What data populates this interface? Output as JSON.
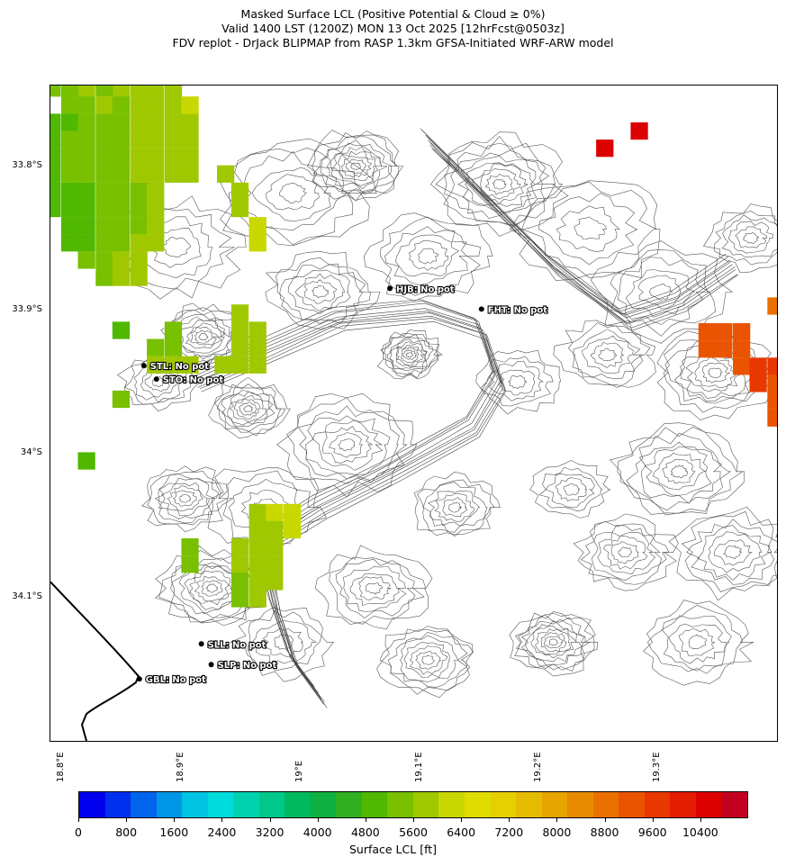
{
  "title": {
    "line1": "Masked Surface LCL (Positive Potential & Cloud ≥ 0%)",
    "line2": "Valid 1400 LST (1200Z) MON 13 Oct 2025 [12hrFcst@0503z]",
    "line3": "FDV replot - DrJack BLIPMAP from RASP 1.3km GFSA-Initiated WRF-ARW model"
  },
  "axes": {
    "lat_labels": [
      "33.8°S",
      "33.9°S",
      "34°S",
      "34.1°S"
    ],
    "lon_labels": [
      "18.8°E",
      "18.9°E",
      "19°E",
      "19.1°E",
      "19.2°E",
      "19.3°E"
    ]
  },
  "sites": [
    {
      "code": "HJB",
      "label": "HJB: No pot"
    },
    {
      "code": "FHT",
      "label": "FHT: No pot"
    },
    {
      "code": "STL",
      "label": "STL: No pot"
    },
    {
      "code": "STO",
      "label": "STO: No pot"
    },
    {
      "code": "SLL",
      "label": "SLL: No pot"
    },
    {
      "code": "SLP",
      "label": "SLP: No pot"
    },
    {
      "code": "GBL",
      "label": "GBL: No pot"
    }
  ],
  "colorbar": {
    "label": "Surface LCL [ft]",
    "tick_labels": [
      "0",
      "800",
      "1600",
      "2400",
      "3200",
      "4000",
      "4800",
      "5600",
      "6400",
      "7200",
      "8000",
      "8800",
      "9600",
      "10400"
    ],
    "min": 0,
    "max": 11200,
    "colors": [
      "#0000ee",
      "#0030ee",
      "#0064ec",
      "#0096e6",
      "#00c4e2",
      "#00dcdc",
      "#00d2b0",
      "#00c88a",
      "#00b860",
      "#10b040",
      "#30b020",
      "#50b800",
      "#78c000",
      "#a0c800",
      "#c8d800",
      "#e0dc00",
      "#e6d000",
      "#e6bc00",
      "#e6a400",
      "#e88a00",
      "#ea7000",
      "#ea5400",
      "#e83800",
      "#e41c00",
      "#dc0000",
      "#c40020"
    ]
  },
  "lcl_cells": [
    {
      "lon": 18.793,
      "lat": 33.735,
      "ft": 5000
    },
    {
      "lon": 18.808,
      "lat": 33.735,
      "ft": 5200
    },
    {
      "lon": 18.822,
      "lat": 33.735,
      "ft": 5400
    },
    {
      "lon": 18.837,
      "lat": 33.735,
      "ft": 5500
    },
    {
      "lon": 18.851,
      "lat": 33.735,
      "ft": 5600
    },
    {
      "lon": 18.866,
      "lat": 33.735,
      "ft": 5800
    },
    {
      "lon": 18.88,
      "lat": 33.735,
      "ft": 6000
    },
    {
      "lon": 18.866,
      "lat": 33.746,
      "ft": 5800
    },
    {
      "lon": 18.88,
      "lat": 33.746,
      "ft": 5800
    },
    {
      "lon": 18.895,
      "lat": 33.746,
      "ft": 6000
    },
    {
      "lon": 18.822,
      "lat": 33.746,
      "ft": 5600
    },
    {
      "lon": 18.808,
      "lat": 33.746,
      "ft": 5400
    },
    {
      "lon": 18.851,
      "lat": 33.746,
      "ft": 5600
    },
    {
      "lon": 18.837,
      "lat": 33.746,
      "ft": 5500
    },
    {
      "lon": 18.793,
      "lat": 33.746,
      "ft": 5400
    },
    {
      "lon": 18.808,
      "lat": 33.758,
      "ft": 5200
    },
    {
      "lon": 18.822,
      "lat": 33.758,
      "ft": 5400
    },
    {
      "lon": 18.837,
      "lat": 33.758,
      "ft": 5600
    },
    {
      "lon": 18.851,
      "lat": 33.758,
      "ft": 5400
    },
    {
      "lon": 18.866,
      "lat": 33.758,
      "ft": 5600
    },
    {
      "lon": 18.88,
      "lat": 33.758,
      "ft": 5800
    },
    {
      "lon": 18.895,
      "lat": 33.758,
      "ft": 6000
    },
    {
      "lon": 18.909,
      "lat": 33.758,
      "ft": 6200
    },
    {
      "lon": 18.793,
      "lat": 33.77,
      "ft": 4800
    },
    {
      "lon": 18.808,
      "lat": 33.77,
      "ft": 5000
    },
    {
      "lon": 18.822,
      "lat": 33.77,
      "ft": 5200
    },
    {
      "lon": 18.837,
      "lat": 33.77,
      "ft": 5400
    },
    {
      "lon": 18.851,
      "lat": 33.77,
      "ft": 5400
    },
    {
      "lon": 18.866,
      "lat": 33.77,
      "ft": 5600
    },
    {
      "lon": 18.88,
      "lat": 33.77,
      "ft": 5800
    },
    {
      "lon": 18.895,
      "lat": 33.77,
      "ft": 5800
    },
    {
      "lon": 18.909,
      "lat": 33.77,
      "ft": 6000
    },
    {
      "lon": 18.779,
      "lat": 33.782,
      "ft": 4800
    },
    {
      "lon": 18.793,
      "lat": 33.782,
      "ft": 5000
    },
    {
      "lon": 18.808,
      "lat": 33.782,
      "ft": 5200
    },
    {
      "lon": 18.822,
      "lat": 33.782,
      "ft": 5200
    },
    {
      "lon": 18.837,
      "lat": 33.782,
      "ft": 5400
    },
    {
      "lon": 18.851,
      "lat": 33.782,
      "ft": 5400
    },
    {
      "lon": 18.866,
      "lat": 33.782,
      "ft": 5600
    },
    {
      "lon": 18.88,
      "lat": 33.782,
      "ft": 5800
    },
    {
      "lon": 18.895,
      "lat": 33.782,
      "ft": 5800
    },
    {
      "lon": 18.909,
      "lat": 33.782,
      "ft": 6000
    },
    {
      "lon": 18.764,
      "lat": 33.794,
      "ft": 4600
    },
    {
      "lon": 18.779,
      "lat": 33.794,
      "ft": 4800
    },
    {
      "lon": 18.793,
      "lat": 33.794,
      "ft": 5000
    },
    {
      "lon": 18.808,
      "lat": 33.794,
      "ft": 5200
    },
    {
      "lon": 18.822,
      "lat": 33.794,
      "ft": 5200
    },
    {
      "lon": 18.837,
      "lat": 33.794,
      "ft": 5400
    },
    {
      "lon": 18.851,
      "lat": 33.794,
      "ft": 5400
    },
    {
      "lon": 18.866,
      "lat": 33.794,
      "ft": 5600
    },
    {
      "lon": 18.88,
      "lat": 33.794,
      "ft": 5800
    },
    {
      "lon": 18.895,
      "lat": 33.794,
      "ft": 6000
    },
    {
      "lon": 18.909,
      "lat": 33.794,
      "ft": 6000
    },
    {
      "lon": 18.764,
      "lat": 33.806,
      "ft": 4400
    },
    {
      "lon": 18.779,
      "lat": 33.806,
      "ft": 4600
    },
    {
      "lon": 18.793,
      "lat": 33.806,
      "ft": 5000
    },
    {
      "lon": 18.808,
      "lat": 33.806,
      "ft": 5200
    },
    {
      "lon": 18.822,
      "lat": 33.806,
      "ft": 5200
    },
    {
      "lon": 18.837,
      "lat": 33.806,
      "ft": 5400
    },
    {
      "lon": 18.851,
      "lat": 33.806,
      "ft": 5400
    },
    {
      "lon": 18.866,
      "lat": 33.806,
      "ft": 5600
    },
    {
      "lon": 18.88,
      "lat": 33.806,
      "ft": 5800
    },
    {
      "lon": 18.895,
      "lat": 33.806,
      "ft": 5800
    },
    {
      "lon": 18.909,
      "lat": 33.806,
      "ft": 5800
    },
    {
      "lon": 18.939,
      "lat": 33.806,
      "ft": 6000
    },
    {
      "lon": 18.764,
      "lat": 33.818,
      "ft": 4400
    },
    {
      "lon": 18.779,
      "lat": 33.818,
      "ft": 4600
    },
    {
      "lon": 18.793,
      "lat": 33.818,
      "ft": 4800
    },
    {
      "lon": 18.808,
      "lat": 33.818,
      "ft": 5000
    },
    {
      "lon": 18.822,
      "lat": 33.818,
      "ft": 5000
    },
    {
      "lon": 18.837,
      "lat": 33.818,
      "ft": 5200
    },
    {
      "lon": 18.851,
      "lat": 33.818,
      "ft": 5400
    },
    {
      "lon": 18.866,
      "lat": 33.818,
      "ft": 5400
    },
    {
      "lon": 18.88,
      "lat": 33.818,
      "ft": 5600
    },
    {
      "lon": 18.951,
      "lat": 33.818,
      "ft": 6000
    },
    {
      "lon": 18.793,
      "lat": 33.83,
      "ft": 4800
    },
    {
      "lon": 18.808,
      "lat": 33.83,
      "ft": 5000
    },
    {
      "lon": 18.822,
      "lat": 33.83,
      "ft": 5000
    },
    {
      "lon": 18.837,
      "lat": 33.83,
      "ft": 5200
    },
    {
      "lon": 18.851,
      "lat": 33.83,
      "ft": 5400
    },
    {
      "lon": 18.866,
      "lat": 33.83,
      "ft": 5400
    },
    {
      "lon": 18.88,
      "lat": 33.83,
      "ft": 5600
    },
    {
      "lon": 18.951,
      "lat": 33.83,
      "ft": 6000
    },
    {
      "lon": 18.808,
      "lat": 33.842,
      "ft": 5000
    },
    {
      "lon": 18.822,
      "lat": 33.842,
      "ft": 5000
    },
    {
      "lon": 18.837,
      "lat": 33.842,
      "ft": 5200
    },
    {
      "lon": 18.851,
      "lat": 33.842,
      "ft": 5200
    },
    {
      "lon": 18.866,
      "lat": 33.842,
      "ft": 5400
    },
    {
      "lon": 18.88,
      "lat": 33.842,
      "ft": 5600
    },
    {
      "lon": 18.966,
      "lat": 33.842,
      "ft": 6400
    },
    {
      "lon": 18.808,
      "lat": 33.854,
      "ft": 5000
    },
    {
      "lon": 18.822,
      "lat": 33.854,
      "ft": 5000
    },
    {
      "lon": 18.837,
      "lat": 33.854,
      "ft": 5200
    },
    {
      "lon": 18.851,
      "lat": 33.854,
      "ft": 5400
    },
    {
      "lon": 18.866,
      "lat": 33.854,
      "ft": 5600
    },
    {
      "lon": 18.88,
      "lat": 33.854,
      "ft": 5800
    },
    {
      "lon": 18.966,
      "lat": 33.854,
      "ft": 6200
    },
    {
      "lon": 18.822,
      "lat": 33.866,
      "ft": 5200
    },
    {
      "lon": 18.837,
      "lat": 33.866,
      "ft": 5400
    },
    {
      "lon": 18.851,
      "lat": 33.866,
      "ft": 5600
    },
    {
      "lon": 18.866,
      "lat": 33.866,
      "ft": 5800
    },
    {
      "lon": 18.837,
      "lat": 33.878,
      "ft": 5400
    },
    {
      "lon": 18.851,
      "lat": 33.878,
      "ft": 5600
    },
    {
      "lon": 18.866,
      "lat": 33.878,
      "ft": 5800
    },
    {
      "lon": 18.951,
      "lat": 33.903,
      "ft": 5600
    },
    {
      "lon": 18.851,
      "lat": 33.915,
      "ft": 4800
    },
    {
      "lon": 18.895,
      "lat": 33.915,
      "ft": 5200
    },
    {
      "lon": 18.951,
      "lat": 33.915,
      "ft": 5600
    },
    {
      "lon": 18.966,
      "lat": 33.915,
      "ft": 5600
    },
    {
      "lon": 18.88,
      "lat": 33.927,
      "ft": 5400
    },
    {
      "lon": 18.895,
      "lat": 33.927,
      "ft": 5400
    },
    {
      "lon": 18.951,
      "lat": 33.927,
      "ft": 5600
    },
    {
      "lon": 18.966,
      "lat": 33.927,
      "ft": 5800
    },
    {
      "lon": 18.88,
      "lat": 33.939,
      "ft": 5800
    },
    {
      "lon": 18.895,
      "lat": 33.939,
      "ft": 5800
    },
    {
      "lon": 18.909,
      "lat": 33.939,
      "ft": 6000
    },
    {
      "lon": 18.937,
      "lat": 33.939,
      "ft": 5800
    },
    {
      "lon": 18.951,
      "lat": 33.939,
      "ft": 5800
    },
    {
      "lon": 18.966,
      "lat": 33.939,
      "ft": 6000
    },
    {
      "lon": 18.851,
      "lat": 33.963,
      "ft": 5200
    },
    {
      "lon": 18.822,
      "lat": 34.006,
      "ft": 4800
    },
    {
      "lon": 18.966,
      "lat": 34.042,
      "ft": 6000
    },
    {
      "lon": 18.98,
      "lat": 34.042,
      "ft": 6200
    },
    {
      "lon": 18.995,
      "lat": 34.042,
      "ft": 6400
    },
    {
      "lon": 18.966,
      "lat": 34.054,
      "ft": 6000
    },
    {
      "lon": 18.98,
      "lat": 34.054,
      "ft": 6000
    },
    {
      "lon": 18.995,
      "lat": 34.054,
      "ft": 6200
    },
    {
      "lon": 18.951,
      "lat": 34.066,
      "ft": 5800
    },
    {
      "lon": 18.966,
      "lat": 34.066,
      "ft": 5600
    },
    {
      "lon": 18.98,
      "lat": 34.066,
      "ft": 5800
    },
    {
      "lon": 18.909,
      "lat": 34.066,
      "ft": 5400
    },
    {
      "lon": 18.909,
      "lat": 34.078,
      "ft": 5400
    },
    {
      "lon": 18.951,
      "lat": 34.078,
      "ft": 5600
    },
    {
      "lon": 18.966,
      "lat": 34.078,
      "ft": 5600
    },
    {
      "lon": 18.98,
      "lat": 34.078,
      "ft": 5800
    },
    {
      "lon": 18.951,
      "lat": 34.09,
      "ft": 5400
    },
    {
      "lon": 18.966,
      "lat": 34.09,
      "ft": 5600
    },
    {
      "lon": 18.98,
      "lat": 34.09,
      "ft": 5800
    },
    {
      "lon": 18.951,
      "lat": 34.102,
      "ft": 5400
    },
    {
      "lon": 18.966,
      "lat": 34.102,
      "ft": 5600
    },
    {
      "lon": 19.258,
      "lat": 33.788,
      "ft": 10400
    },
    {
      "lon": 19.287,
      "lat": 33.776,
      "ft": 10400
    },
    {
      "lon": 19.344,
      "lat": 33.916,
      "ft": 9200
    },
    {
      "lon": 19.358,
      "lat": 33.916,
      "ft": 9400
    },
    {
      "lon": 19.373,
      "lat": 33.916,
      "ft": 9400
    },
    {
      "lon": 19.344,
      "lat": 33.928,
      "ft": 9200
    },
    {
      "lon": 19.358,
      "lat": 33.928,
      "ft": 9400
    },
    {
      "lon": 19.373,
      "lat": 33.928,
      "ft": 9400
    },
    {
      "lon": 19.373,
      "lat": 33.94,
      "ft": 9400
    },
    {
      "lon": 19.387,
      "lat": 33.94,
      "ft": 9600
    },
    {
      "lon": 19.402,
      "lat": 33.94,
      "ft": 9600
    },
    {
      "lon": 19.387,
      "lat": 33.952,
      "ft": 9600
    },
    {
      "lon": 19.402,
      "lat": 33.952,
      "ft": 9400
    },
    {
      "lon": 19.402,
      "lat": 33.964,
      "ft": 9200
    },
    {
      "lon": 19.402,
      "lat": 33.976,
      "ft": 9400
    },
    {
      "lon": 19.402,
      "lat": 33.898,
      "ft": 9000
    }
  ]
}
